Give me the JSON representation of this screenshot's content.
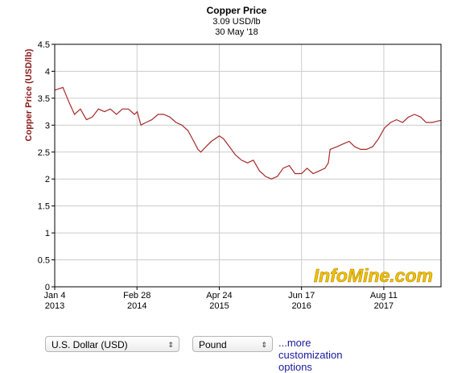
{
  "chart_data": {
    "type": "line",
    "title": "Copper Price",
    "subtitle": "3.09 USD/lb",
    "date_label": "30 May '18",
    "ylabel": "Copper Price (USD/lb)",
    "ylim": [
      0,
      4.5
    ],
    "yticks": [
      "0",
      "0.5",
      "1",
      "1.5",
      "2",
      "2.5",
      "3",
      "3.5",
      "4",
      "4.5"
    ],
    "xlim": [
      "2013-01-04",
      "2018-05-30"
    ],
    "xticks": [
      {
        "date": "2013-01-04",
        "line1": "Jan 4",
        "line2": "2013"
      },
      {
        "date": "2014-02-28",
        "line1": "Feb 28",
        "line2": "2014"
      },
      {
        "date": "2015-04-24",
        "line1": "Apr 24",
        "line2": "2015"
      },
      {
        "date": "2016-06-17",
        "line1": "Jun 17",
        "line2": "2016"
      },
      {
        "date": "2017-08-11",
        "line1": "Aug 11",
        "line2": "2017"
      }
    ],
    "grid": true,
    "line_color": "#a52a2a",
    "series": [
      {
        "x": [
          "2013-01-04",
          "2013-02-15",
          "2013-03-15",
          "2013-04-15",
          "2013-05-15",
          "2013-06-15",
          "2013-07-15",
          "2013-08-15",
          "2013-09-15",
          "2013-10-15",
          "2013-11-15",
          "2013-12-15",
          "2014-01-15",
          "2014-02-15",
          "2014-03-01",
          "2014-03-20",
          "2014-04-15",
          "2014-05-15",
          "2014-06-15",
          "2014-07-15",
          "2014-08-15",
          "2014-09-15",
          "2014-10-15",
          "2014-11-15",
          "2014-12-15",
          "2015-01-05",
          "2015-01-20",
          "2015-02-15",
          "2015-03-15",
          "2015-04-24",
          "2015-05-15",
          "2015-06-15",
          "2015-07-15",
          "2015-08-15",
          "2015-09-15",
          "2015-10-15",
          "2015-11-15",
          "2015-12-01",
          "2015-12-15",
          "2016-01-15",
          "2016-02-15",
          "2016-03-15",
          "2016-04-15",
          "2016-05-15",
          "2016-06-17",
          "2016-07-15",
          "2016-08-15",
          "2016-09-15",
          "2016-10-15",
          "2016-11-01",
          "2016-11-10",
          "2016-12-15",
          "2017-01-15",
          "2017-02-15",
          "2017-03-15",
          "2017-04-15",
          "2017-05-15",
          "2017-06-15",
          "2017-07-15",
          "2017-08-15",
          "2017-09-15",
          "2017-10-15",
          "2017-11-15",
          "2017-12-15",
          "2018-01-15",
          "2018-02-15",
          "2018-03-15",
          "2018-04-15",
          "2018-05-30"
        ],
        "y": [
          3.65,
          3.7,
          3.45,
          3.2,
          3.3,
          3.1,
          3.15,
          3.3,
          3.25,
          3.3,
          3.2,
          3.3,
          3.3,
          3.2,
          3.25,
          3.0,
          3.05,
          3.1,
          3.2,
          3.2,
          3.15,
          3.05,
          3.0,
          2.9,
          2.7,
          2.55,
          2.5,
          2.6,
          2.7,
          2.8,
          2.75,
          2.6,
          2.45,
          2.35,
          2.3,
          2.35,
          2.15,
          2.1,
          2.05,
          2.0,
          2.05,
          2.2,
          2.25,
          2.1,
          2.1,
          2.2,
          2.1,
          2.15,
          2.2,
          2.3,
          2.55,
          2.6,
          2.65,
          2.7,
          2.6,
          2.55,
          2.55,
          2.6,
          2.75,
          2.95,
          3.05,
          3.1,
          3.05,
          3.15,
          3.2,
          3.15,
          3.05,
          3.05,
          3.09
        ]
      }
    ]
  },
  "watermark": "InfoMine.com",
  "controls": {
    "currency_selected": "U.S. Dollar (USD)",
    "unit_selected": "Pound",
    "more_link": "...more customization options"
  }
}
